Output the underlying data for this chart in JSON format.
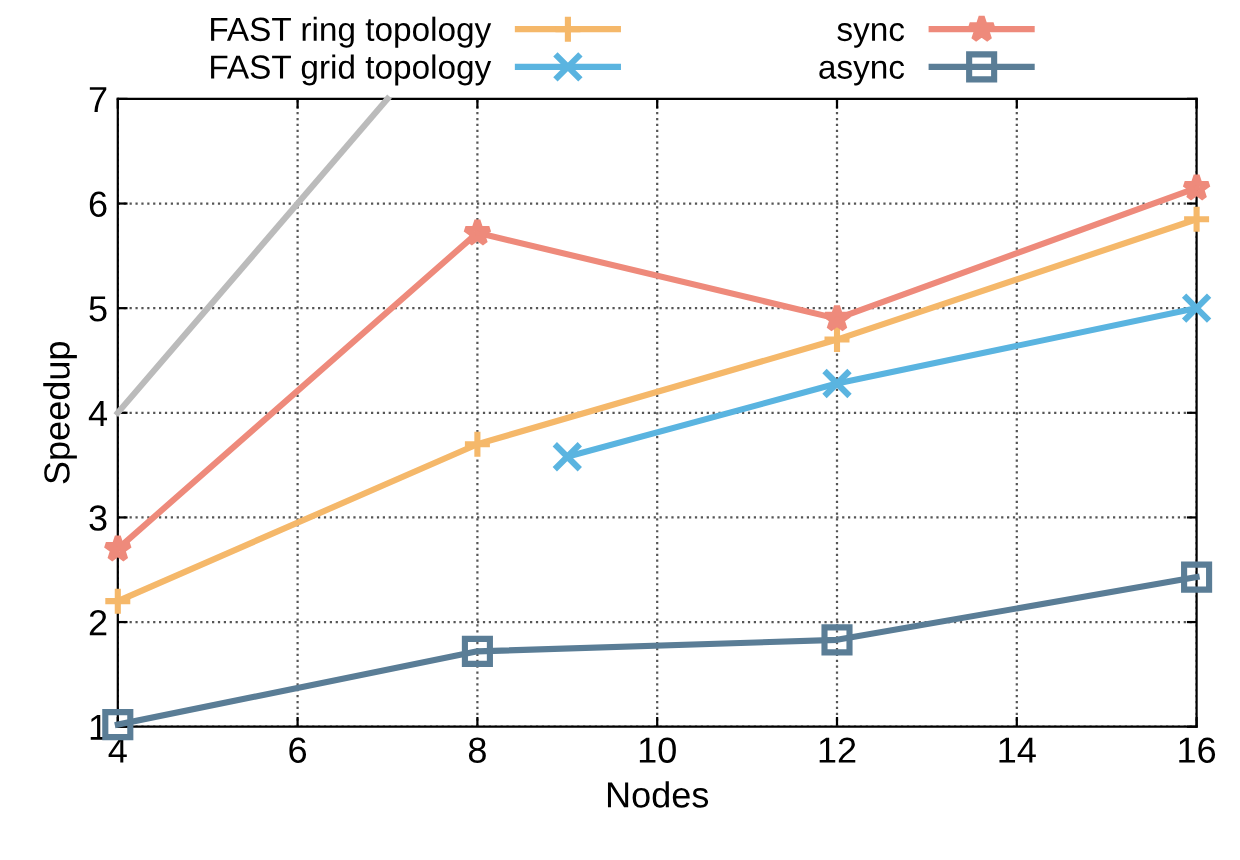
{
  "chart_data": {
    "type": "line",
    "xlabel": "Nodes",
    "ylabel": "Speedup",
    "xlim": [
      4,
      16
    ],
    "ylim": [
      1,
      7
    ],
    "xticks": [
      4,
      6,
      8,
      10,
      12,
      14,
      16
    ],
    "yticks": [
      1,
      2,
      3,
      4,
      5,
      6,
      7
    ],
    "grid": true,
    "legend": "top",
    "line_style": "solid",
    "series": [
      {
        "name": "FAST ring topology",
        "color": "#f5b86a",
        "marker": "cross",
        "x": [
          4,
          8,
          12,
          16
        ],
        "values": [
          2.2,
          3.7,
          4.7,
          5.85
        ]
      },
      {
        "name": "FAST grid topology",
        "color": "#5ab4e0",
        "marker": "x",
        "x": [
          9,
          12,
          16
        ],
        "values": [
          3.58,
          4.28,
          5.0
        ]
      },
      {
        "name": "sync",
        "color": "#ee8a7b",
        "marker": "star",
        "x": [
          4,
          8,
          12,
          16
        ],
        "values": [
          2.7,
          5.72,
          4.9,
          6.15
        ]
      },
      {
        "name": "async",
        "color": "#5a7d96",
        "marker": "square",
        "x": [
          4,
          8,
          12,
          16
        ],
        "values": [
          1.02,
          1.72,
          1.83,
          2.43
        ]
      },
      {
        "color": "#bbbbbb",
        "marker": "none",
        "x": [
          4,
          7
        ],
        "values": [
          4,
          7
        ]
      }
    ]
  }
}
